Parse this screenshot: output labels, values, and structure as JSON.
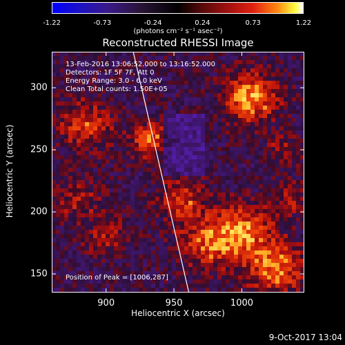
{
  "colorbar": {
    "ticks": [
      "-1.22",
      "-0.73",
      "-0.24",
      "0.24",
      "0.73",
      "1.22"
    ],
    "tick_values": [
      -1.22,
      -0.73,
      -0.24,
      0.24,
      0.73,
      1.22
    ],
    "units": "(photons cm⁻² s⁻¹ asec⁻²)",
    "colors": [
      "#0000ff",
      "#000000",
      "#ff2010",
      "#ffffff"
    ]
  },
  "title": "Reconstructed RHESSI Image",
  "info": {
    "time_range": "13-Feb-2016 13:06:52.000 to 13:16:52.000",
    "detectors": "Detectors: 1F 5F 7F, Att 0",
    "energy": "Energy Range: 3.0 - 6.0 keV",
    "clean": "Clean     Total counts: 1.50E+05"
  },
  "peak_text": "Position of Peak = [1006,287]",
  "axes": {
    "xlabel": "Heliocentric X (arcsec)",
    "ylabel": "Heliocentric Y (arcsec)",
    "x_ticks": [
      "900",
      "950",
      "1000"
    ],
    "x_tick_values": [
      900,
      950,
      1000
    ],
    "y_ticks": [
      "150",
      "200",
      "250",
      "300"
    ],
    "y_tick_values": [
      150,
      200,
      250,
      300
    ],
    "xlim": [
      860,
      1046
    ],
    "ylim": [
      135,
      329
    ]
  },
  "limb_line": {
    "x": [
      920,
      961
    ],
    "y": [
      329,
      135
    ]
  },
  "timestamp": "9-Oct-2017 13:04"
}
